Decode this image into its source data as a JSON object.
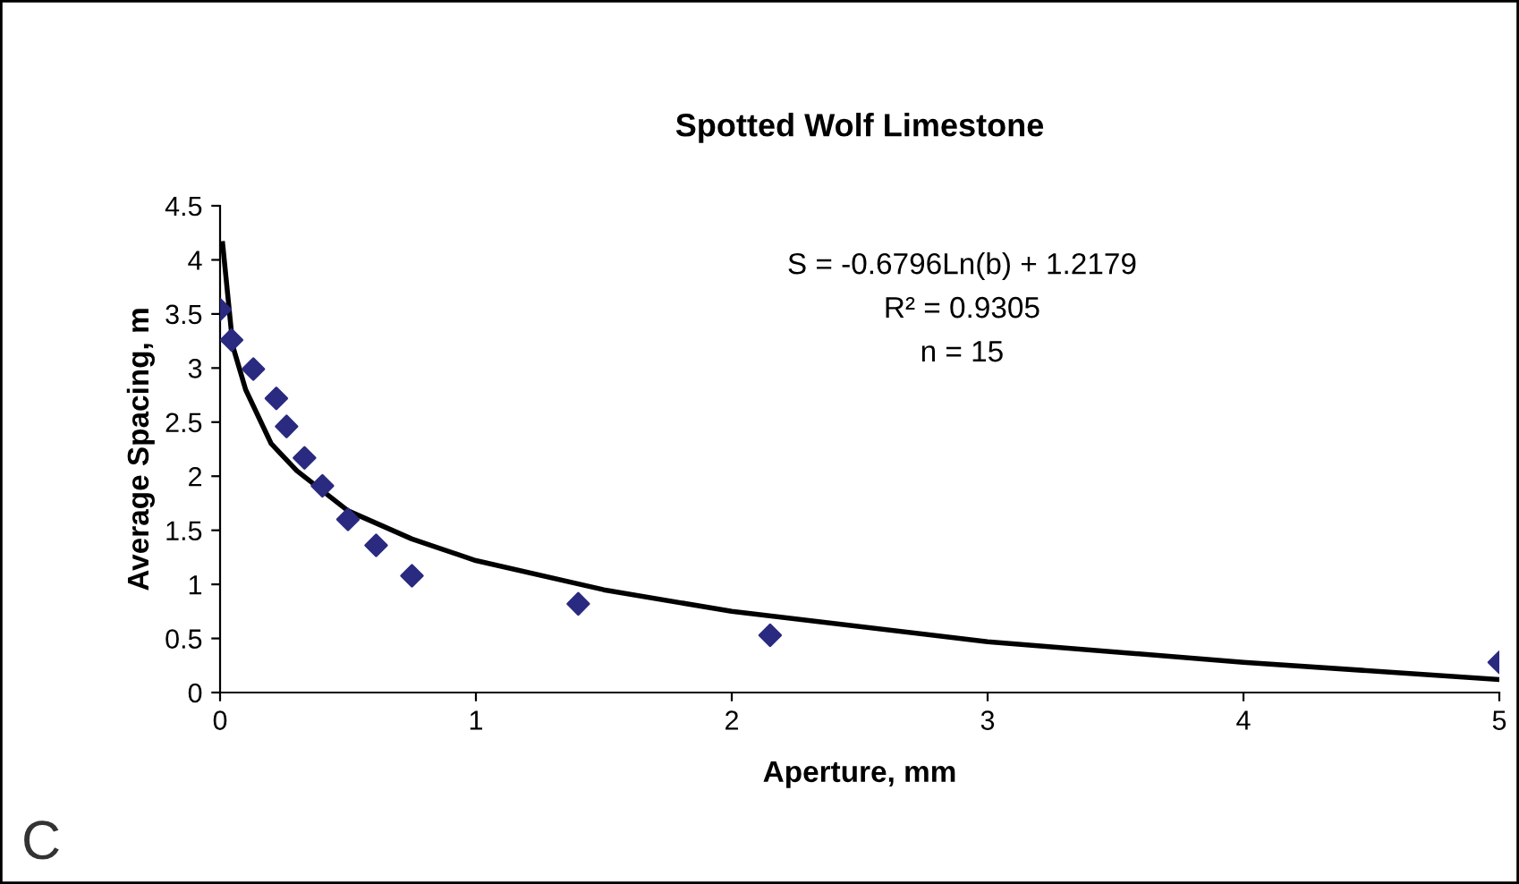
{
  "chart_data": {
    "type": "scatter",
    "title": "Spotted Wolf Limestone",
    "xlabel": "Aperture, mm",
    "ylabel": "Average Spacing, m",
    "xlim": [
      0,
      5
    ],
    "xticks": [
      0,
      1,
      2,
      3,
      4,
      5
    ],
    "ylim": [
      0,
      4.5
    ],
    "yticks": [
      0,
      0.5,
      1,
      1.5,
      2,
      2.5,
      3,
      3.5,
      4,
      4.5
    ],
    "grid": false,
    "legend": false,
    "series": [
      {
        "marker": "diamond",
        "color": "#2a2a80",
        "x": [
          0.0,
          0.045,
          0.13,
          0.22,
          0.26,
          0.33,
          0.4,
          0.5,
          0.61,
          0.75,
          1.4,
          2.15,
          5.0
        ],
        "values": [
          3.54,
          3.26,
          2.99,
          2.72,
          2.46,
          2.17,
          1.91,
          1.6,
          1.36,
          1.08,
          0.82,
          0.53,
          0.28
        ]
      },
      {
        "type": "line",
        "marker": "none",
        "line_style": "solid",
        "color": "#000000",
        "x": [
          0.01,
          0.05,
          0.1,
          0.2,
          0.3,
          0.5,
          0.75,
          1,
          1.5,
          2,
          3,
          4,
          5
        ],
        "values": [
          4.15,
          3.2,
          2.8,
          2.3,
          2.05,
          1.68,
          1.42,
          1.22,
          0.95,
          0.75,
          0.47,
          0.28,
          0.12
        ]
      }
    ],
    "annotations": [
      "S = -0.6796Ln(b) + 1.2179",
      "R² = 0.9305",
      "n = 15",
      "C"
    ]
  }
}
